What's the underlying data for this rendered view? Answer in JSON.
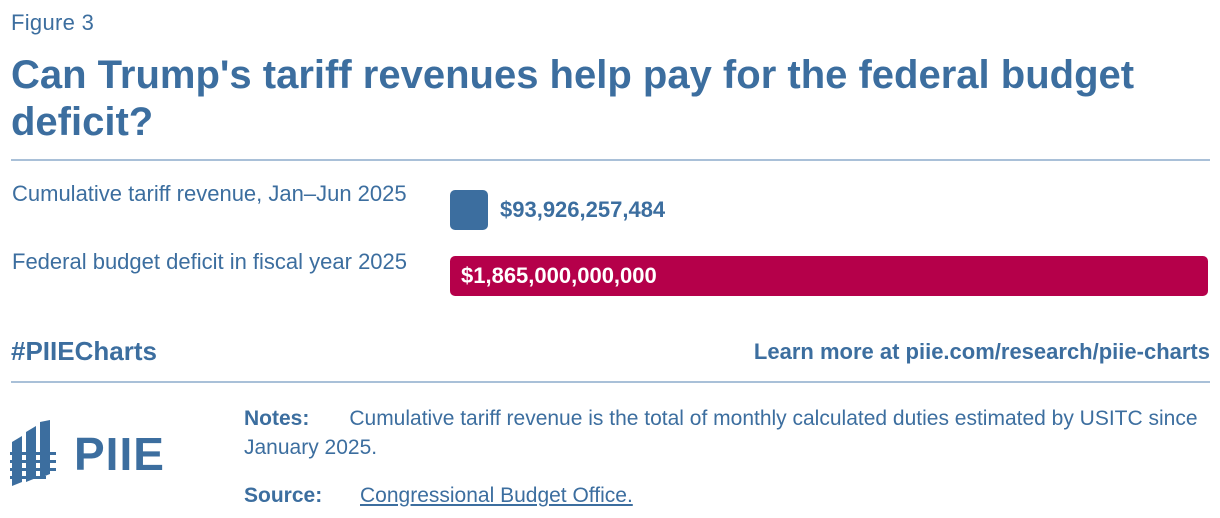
{
  "figure_label": "Figure 3",
  "title": "Can Trump's tariff revenues help pay for the federal budget deficit?",
  "chart_data": {
    "type": "bar",
    "orientation": "horizontal",
    "categories": [
      "Cumulative tariff revenue, Jan–Jun 2025",
      "Federal budget deficit in fiscal year 2025"
    ],
    "values": [
      93926257484,
      1865000000000
    ],
    "value_labels": [
      "$93,926,257,484",
      "$1,865,000,000,000"
    ],
    "colors": [
      "#3c6e9f",
      "#b5004a"
    ],
    "xlim": [
      0,
      1865000000000
    ],
    "title": "Can Trump's tariff revenues help pay for the federal budget deficit?",
    "xlabel": "",
    "ylabel": "",
    "grid": false
  },
  "footer": {
    "hashtag": "#PIIECharts",
    "learn_more": "Learn more at piie.com/research/piie-charts"
  },
  "logo": {
    "text": "PIIE",
    "icon": "piie-building-icon"
  },
  "notes": {
    "label": "Notes:",
    "text": "Cumulative tariff revenue is the total of monthly calculated duties estimated by USITC since January 2025."
  },
  "source": {
    "label": "Source:",
    "text": "Congressional Budget Office."
  }
}
